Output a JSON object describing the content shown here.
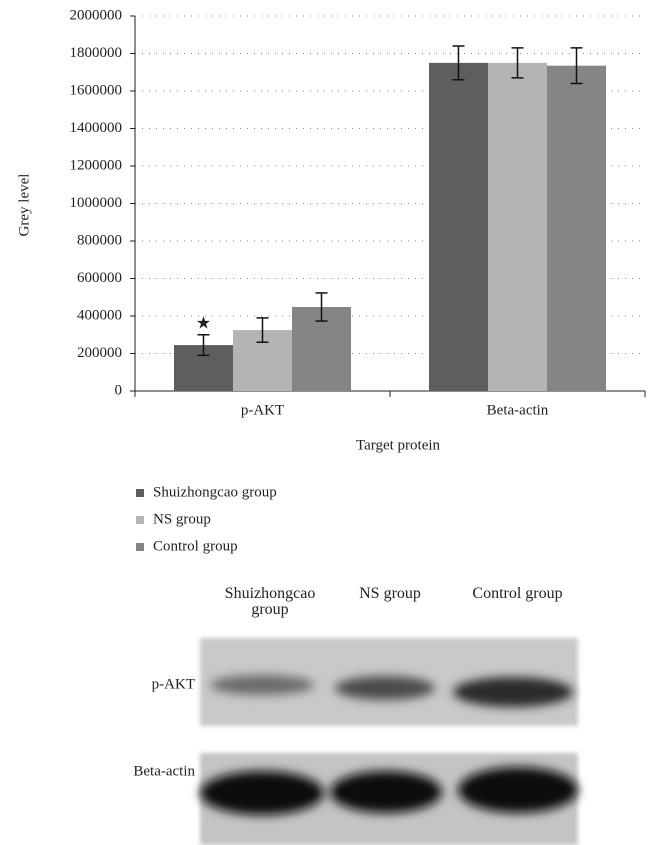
{
  "chart_data": {
    "type": "bar",
    "y_label": "Grey level",
    "x_label": "Target protein",
    "categories": [
      "p-AKT",
      "Beta-actin"
    ],
    "series": [
      {
        "name": "Shuizhongcao group",
        "color": "#5e5e5e",
        "values": [
          245000,
          1750000
        ],
        "errors": [
          55000,
          90000
        ]
      },
      {
        "name": "NS group",
        "color": "#b4b4b4",
        "values": [
          325000,
          1750000
        ],
        "errors": [
          65000,
          80000
        ]
      },
      {
        "name": "Control group",
        "color": "#858585",
        "values": [
          448000,
          1735000
        ],
        "errors": [
          75000,
          95000
        ]
      }
    ],
    "annotation": "★",
    "ylim": [
      0,
      2000000
    ],
    "yticks": [
      0,
      200000,
      400000,
      600000,
      800000,
      1000000,
      1200000,
      1400000,
      1600000,
      1800000,
      2000000
    ],
    "grid": true
  },
  "blot": {
    "lanes": [
      "Shuizhongcao group",
      "NS group",
      "Control group"
    ],
    "rows": [
      "p-AKT",
      "Beta-actin"
    ]
  }
}
